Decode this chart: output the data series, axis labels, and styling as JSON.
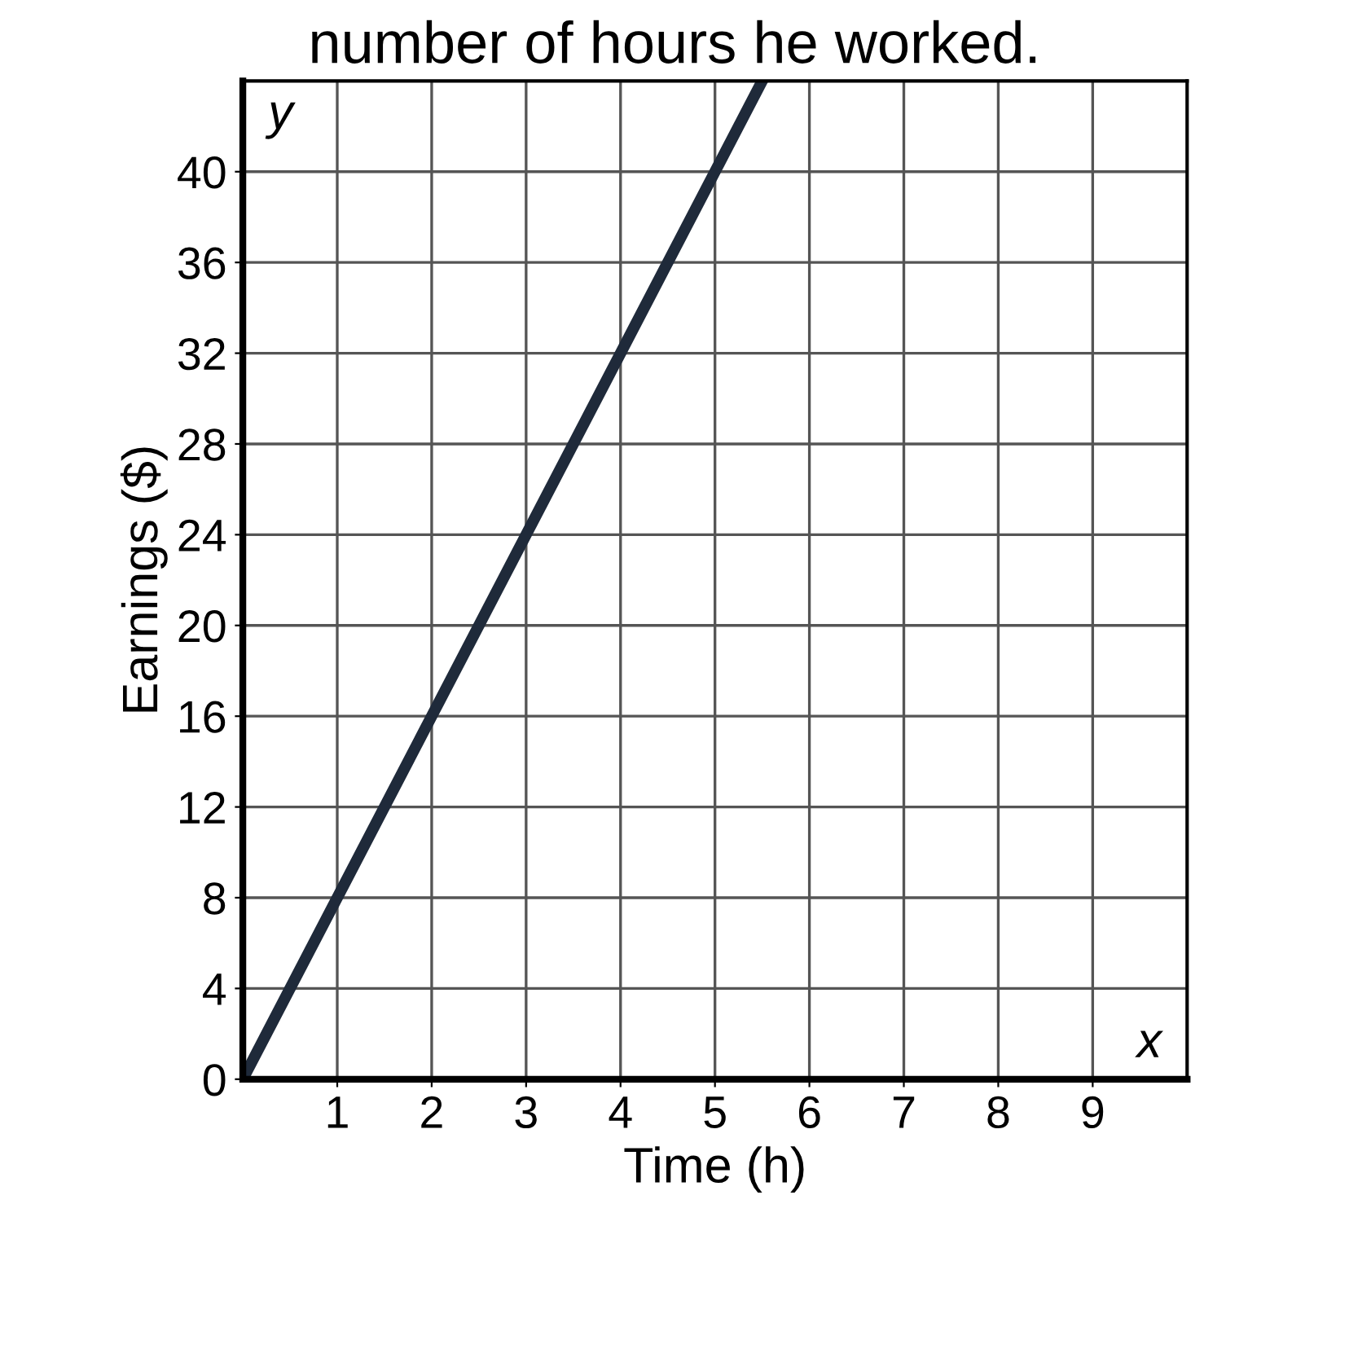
{
  "chart_data": {
    "type": "line",
    "title": "number of hours he worked.",
    "xlabel": "Time (h)",
    "ylabel": "Earnings ($)",
    "x": [
      0,
      5.5
    ],
    "series": [
      {
        "color": "#1f2a3a",
        "values": [
          0,
          44
        ]
      }
    ],
    "xlim": [
      0,
      10
    ],
    "ylim": [
      0,
      44
    ],
    "xticks": [
      1,
      2,
      3,
      4,
      5,
      6,
      7,
      8,
      9
    ],
    "yticks": [
      0,
      4,
      8,
      12,
      16,
      20,
      24,
      28,
      32,
      36,
      40
    ],
    "grid": true,
    "marker": "none",
    "line_style": "solid",
    "annotations": [
      "x",
      "y"
    ]
  }
}
